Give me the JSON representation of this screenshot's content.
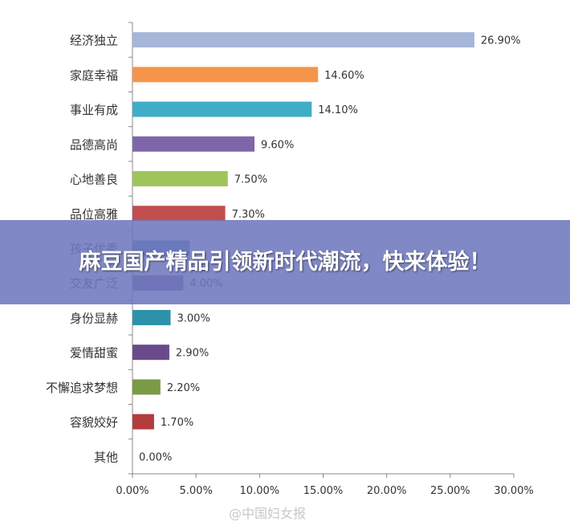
{
  "chart_data": {
    "type": "bar",
    "orientation": "horizontal",
    "categories": [
      "经济独立",
      "家庭幸福",
      "事业有成",
      "品德高尚",
      "心地善良",
      "品位高雅",
      "孩子优秀",
      "交友广泛",
      "身份显赫",
      "爱情甜蜜",
      "不懈追求梦想",
      "容貌姣好",
      "其他"
    ],
    "values": [
      26.9,
      14.6,
      14.1,
      9.6,
      7.5,
      7.3,
      4.5,
      4.0,
      3.0,
      2.9,
      2.2,
      1.7,
      0.0
    ],
    "value_labels": [
      "26.90%",
      "14.60%",
      "14.10%",
      "9.60%",
      "7.50%",
      "7.30%",
      "",
      "4.00%",
      "3.00%",
      "2.90%",
      "2.20%",
      "1.70%",
      "0.00%"
    ],
    "colors": [
      "#a5b6d8",
      "#f6954a",
      "#3fadc6",
      "#7f66a8",
      "#9fc55a",
      "#c14f4f",
      "#4f79b8",
      "#7a6390",
      "#2e91aa",
      "#6b4a8c",
      "#7a9a45",
      "#b43c3c",
      "#888888"
    ],
    "xlim": [
      0,
      30
    ],
    "x_ticks": [
      "0.00%",
      "5.00%",
      "10.00%",
      "15.00%",
      "20.00%",
      "25.00%",
      "30.00%"
    ],
    "grid": false,
    "legend": "none"
  },
  "banner": {
    "text": "麻豆国产精品引领新时代潮流，快来体验！"
  },
  "watermark": {
    "text": "@中国妇女报"
  }
}
